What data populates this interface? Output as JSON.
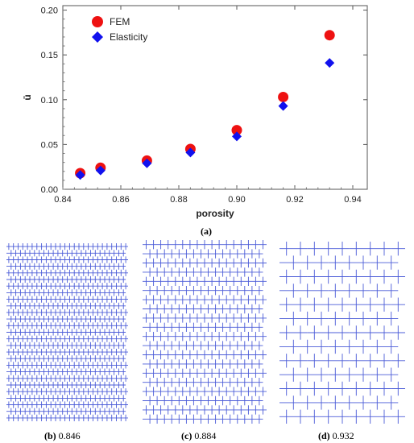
{
  "chart_data": {
    "type": "scatter",
    "xlabel": "porosity",
    "ylabel": "ū",
    "xlim": [
      0.84,
      0.945
    ],
    "ylim": [
      0.0,
      0.205
    ],
    "x_ticks": [
      "0.84",
      "0.86",
      "0.88",
      "0.90",
      "0.92",
      "0.94"
    ],
    "y_ticks": [
      "0.00",
      "0.05",
      "0.10",
      "0.15",
      "0.20"
    ],
    "legend_position": "top-left",
    "series": [
      {
        "name": "FEM",
        "marker": "circle",
        "color": "#ee1111",
        "x": [
          0.846,
          0.853,
          0.869,
          0.884,
          0.9,
          0.916,
          0.932
        ],
        "y": [
          0.018,
          0.024,
          0.032,
          0.045,
          0.066,
          0.103,
          0.172
        ]
      },
      {
        "name": "Elasticity",
        "marker": "diamond",
        "color": "#1111ee",
        "x": [
          0.846,
          0.853,
          0.869,
          0.884,
          0.9,
          0.916,
          0.932
        ],
        "y": [
          0.016,
          0.021,
          0.029,
          0.041,
          0.059,
          0.093,
          0.141
        ]
      }
    ]
  },
  "figure_captions": {
    "a": {
      "letter": "(a)",
      "value": ""
    },
    "b": {
      "letter": "(b)",
      "value": "0.846"
    },
    "c": {
      "letter": "(c)",
      "value": "0.884"
    },
    "d": {
      "letter": "(d)",
      "value": "0.932"
    }
  },
  "lattice_panels": [
    {
      "porosity": 0.846,
      "rows": 27,
      "cols": 26,
      "color": "#4b5cd8"
    },
    {
      "porosity": 0.884,
      "rows": 20,
      "cols": 17,
      "color": "#4b5cd8"
    },
    {
      "porosity": 0.932,
      "rows": 13,
      "cols": 9,
      "color": "#4b5cd8"
    }
  ]
}
